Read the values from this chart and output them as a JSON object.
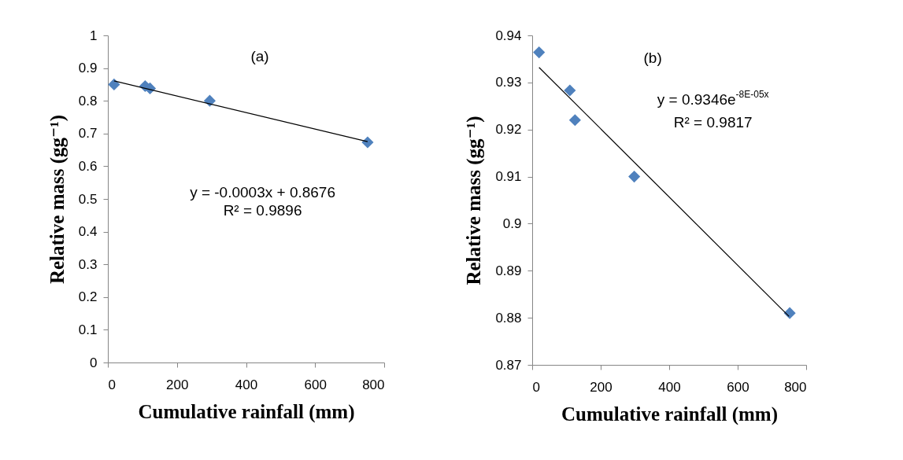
{
  "chart_data": [
    {
      "type": "scatter",
      "xlabel": "Cumulative rainfall (mm)",
      "ylabel": "Relative mass (gg⁻¹)",
      "xlim": [
        0,
        800
      ],
      "xticks": [
        0,
        200,
        400,
        600,
        800
      ],
      "ylim": [
        0,
        1
      ],
      "yticks": [
        0,
        0.1,
        0.2,
        0.3,
        0.4,
        0.5,
        0.6,
        0.7,
        0.8,
        0.9,
        1
      ],
      "grid": false,
      "series": [
        {
          "marker": "diamond",
          "color": "#4f81bd",
          "x": [
            18,
            108,
            122,
            295,
            752
          ],
          "values": [
            0.85,
            0.845,
            0.838,
            0.8,
            0.673
          ]
        },
        {
          "type": "line",
          "marker": "none",
          "color": "#000000",
          "x": [
            18,
            752
          ],
          "values": [
            0.861,
            0.675
          ]
        }
      ],
      "annotations": [
        "(a)",
        "y = -0.0003x + 0.8676",
        "R² = 0.9896"
      ]
    },
    {
      "type": "scatter",
      "xlabel": "Cumulative rainfall (mm)",
      "ylabel": "Relative mass (gg⁻¹)",
      "xlim": [
        0,
        800
      ],
      "xticks": [
        0,
        200,
        400,
        600,
        800
      ],
      "ylim": [
        0.87,
        0.94
      ],
      "yticks": [
        0.87,
        0.88,
        0.89,
        0.9,
        0.91,
        0.92,
        0.93,
        0.94
      ],
      "grid": false,
      "series": [
        {
          "marker": "diamond",
          "color": "#4f81bd",
          "x": [
            20,
            110,
            125,
            298,
            752
          ],
          "values": [
            0.9364,
            0.9283,
            0.922,
            0.91,
            0.881
          ]
        },
        {
          "type": "line",
          "marker": "none",
          "color": "#000000",
          "x": [
            20,
            750
          ],
          "values": [
            0.9332,
            0.8803
          ]
        }
      ],
      "annotations": [
        "(b)",
        "y = 0.9346e$^{-8E-05x}$",
        "R² = 0.9817"
      ]
    }
  ]
}
